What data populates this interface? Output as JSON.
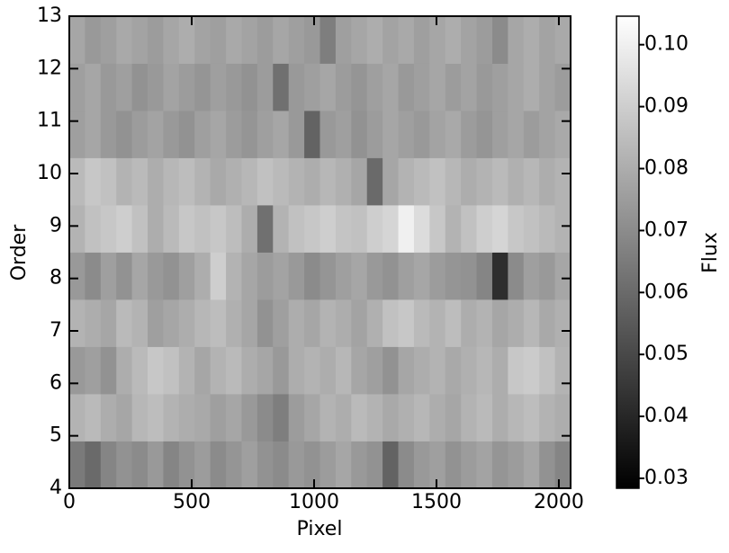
{
  "chart_data": {
    "type": "heatmap",
    "xlabel": "Pixel",
    "ylabel": "Order",
    "colorbar_label": "Flux",
    "colormap": "gray",
    "xlim": [
      0,
      2048
    ],
    "ylim": [
      4,
      13
    ],
    "xticks": [
      0,
      500,
      1000,
      1500,
      2000
    ],
    "yticks": [
      4,
      5,
      6,
      7,
      8,
      9,
      10,
      11,
      12,
      13
    ],
    "clim": [
      0.0284,
      0.1046
    ],
    "cticks": [
      0.03,
      0.04,
      0.05,
      0.06,
      0.07,
      0.08,
      0.09,
      {
        "value": 0.1,
        "label": "0.10"
      }
    ],
    "x_edges": [
      0,
      64,
      128,
      192,
      256,
      320,
      384,
      448,
      512,
      576,
      640,
      704,
      768,
      832,
      896,
      960,
      1024,
      1088,
      1152,
      1216,
      1280,
      1344,
      1408,
      1472,
      1536,
      1600,
      1664,
      1728,
      1792,
      1856,
      1920,
      1984,
      2048
    ],
    "y_edges": [
      4,
      4.9,
      5.8,
      6.7,
      7.6,
      8.5,
      9.4,
      10.3,
      11.2,
      12.1,
      13
    ],
    "values": [
      [
        0.065,
        0.06,
        0.068,
        0.072,
        0.07,
        0.074,
        0.068,
        0.072,
        0.075,
        0.07,
        0.073,
        0.076,
        0.072,
        0.07,
        0.074,
        0.072,
        0.075,
        0.078,
        0.074,
        0.072,
        0.058,
        0.07,
        0.074,
        0.076,
        0.072,
        0.075,
        0.077,
        0.073,
        0.075,
        0.078,
        0.072,
        0.068
      ],
      [
        0.082,
        0.084,
        0.08,
        0.078,
        0.083,
        0.085,
        0.082,
        0.08,
        0.079,
        0.076,
        0.078,
        0.074,
        0.07,
        0.066,
        0.075,
        0.078,
        0.082,
        0.08,
        0.084,
        0.082,
        0.079,
        0.081,
        0.083,
        0.08,
        0.078,
        0.082,
        0.084,
        0.08,
        0.083,
        0.085,
        0.082,
        0.08
      ],
      [
        0.074,
        0.076,
        0.072,
        0.08,
        0.084,
        0.088,
        0.086,
        0.082,
        0.078,
        0.082,
        0.084,
        0.08,
        0.078,
        0.074,
        0.08,
        0.082,
        0.08,
        0.083,
        0.078,
        0.076,
        0.072,
        0.078,
        0.08,
        0.082,
        0.079,
        0.081,
        0.083,
        0.08,
        0.088,
        0.089,
        0.086,
        0.082
      ],
      [
        0.082,
        0.08,
        0.078,
        0.084,
        0.082,
        0.076,
        0.078,
        0.08,
        0.083,
        0.085,
        0.081,
        0.078,
        0.072,
        0.076,
        0.08,
        0.078,
        0.082,
        0.08,
        0.077,
        0.081,
        0.086,
        0.088,
        0.084,
        0.082,
        0.085,
        0.08,
        0.082,
        0.078,
        0.08,
        0.083,
        0.079,
        0.081
      ],
      [
        0.074,
        0.07,
        0.076,
        0.072,
        0.078,
        0.074,
        0.072,
        0.076,
        0.08,
        0.09,
        0.082,
        0.078,
        0.075,
        0.077,
        0.074,
        0.07,
        0.073,
        0.076,
        0.078,
        0.074,
        0.072,
        0.076,
        0.078,
        0.075,
        0.073,
        0.072,
        0.068,
        0.042,
        0.07,
        0.076,
        0.074,
        0.078
      ],
      [
        0.082,
        0.086,
        0.088,
        0.09,
        0.086,
        0.08,
        0.084,
        0.088,
        0.086,
        0.088,
        0.085,
        0.08,
        0.062,
        0.082,
        0.086,
        0.088,
        0.09,
        0.087,
        0.086,
        0.09,
        0.092,
        0.1,
        0.094,
        0.088,
        0.082,
        0.086,
        0.09,
        0.092,
        0.088,
        0.086,
        0.084,
        0.082
      ],
      [
        0.084,
        0.088,
        0.086,
        0.082,
        0.084,
        0.08,
        0.083,
        0.085,
        0.082,
        0.079,
        0.081,
        0.083,
        0.086,
        0.084,
        0.082,
        0.08,
        0.083,
        0.081,
        0.078,
        0.06,
        0.078,
        0.082,
        0.084,
        0.086,
        0.083,
        0.08,
        0.082,
        0.084,
        0.081,
        0.083,
        0.08,
        0.082
      ],
      [
        0.076,
        0.078,
        0.074,
        0.072,
        0.075,
        0.077,
        0.074,
        0.072,
        0.076,
        0.078,
        0.075,
        0.073,
        0.076,
        0.078,
        0.074,
        0.058,
        0.074,
        0.076,
        0.072,
        0.075,
        0.078,
        0.076,
        0.074,
        0.077,
        0.079,
        0.075,
        0.073,
        0.076,
        0.078,
        0.075,
        0.077,
        0.079
      ],
      [
        0.076,
        0.078,
        0.074,
        0.076,
        0.072,
        0.074,
        0.077,
        0.075,
        0.073,
        0.076,
        0.074,
        0.072,
        0.075,
        0.062,
        0.074,
        0.076,
        0.078,
        0.075,
        0.073,
        0.076,
        0.078,
        0.074,
        0.076,
        0.078,
        0.075,
        0.077,
        0.074,
        0.076,
        0.078,
        0.08,
        0.077,
        0.075
      ],
      [
        0.078,
        0.074,
        0.076,
        0.079,
        0.077,
        0.075,
        0.078,
        0.08,
        0.077,
        0.076,
        0.079,
        0.077,
        0.075,
        0.078,
        0.076,
        0.074,
        0.066,
        0.076,
        0.078,
        0.08,
        0.077,
        0.079,
        0.076,
        0.078,
        0.08,
        0.077,
        0.075,
        0.07,
        0.078,
        0.08,
        0.077,
        0.079
      ]
    ]
  }
}
